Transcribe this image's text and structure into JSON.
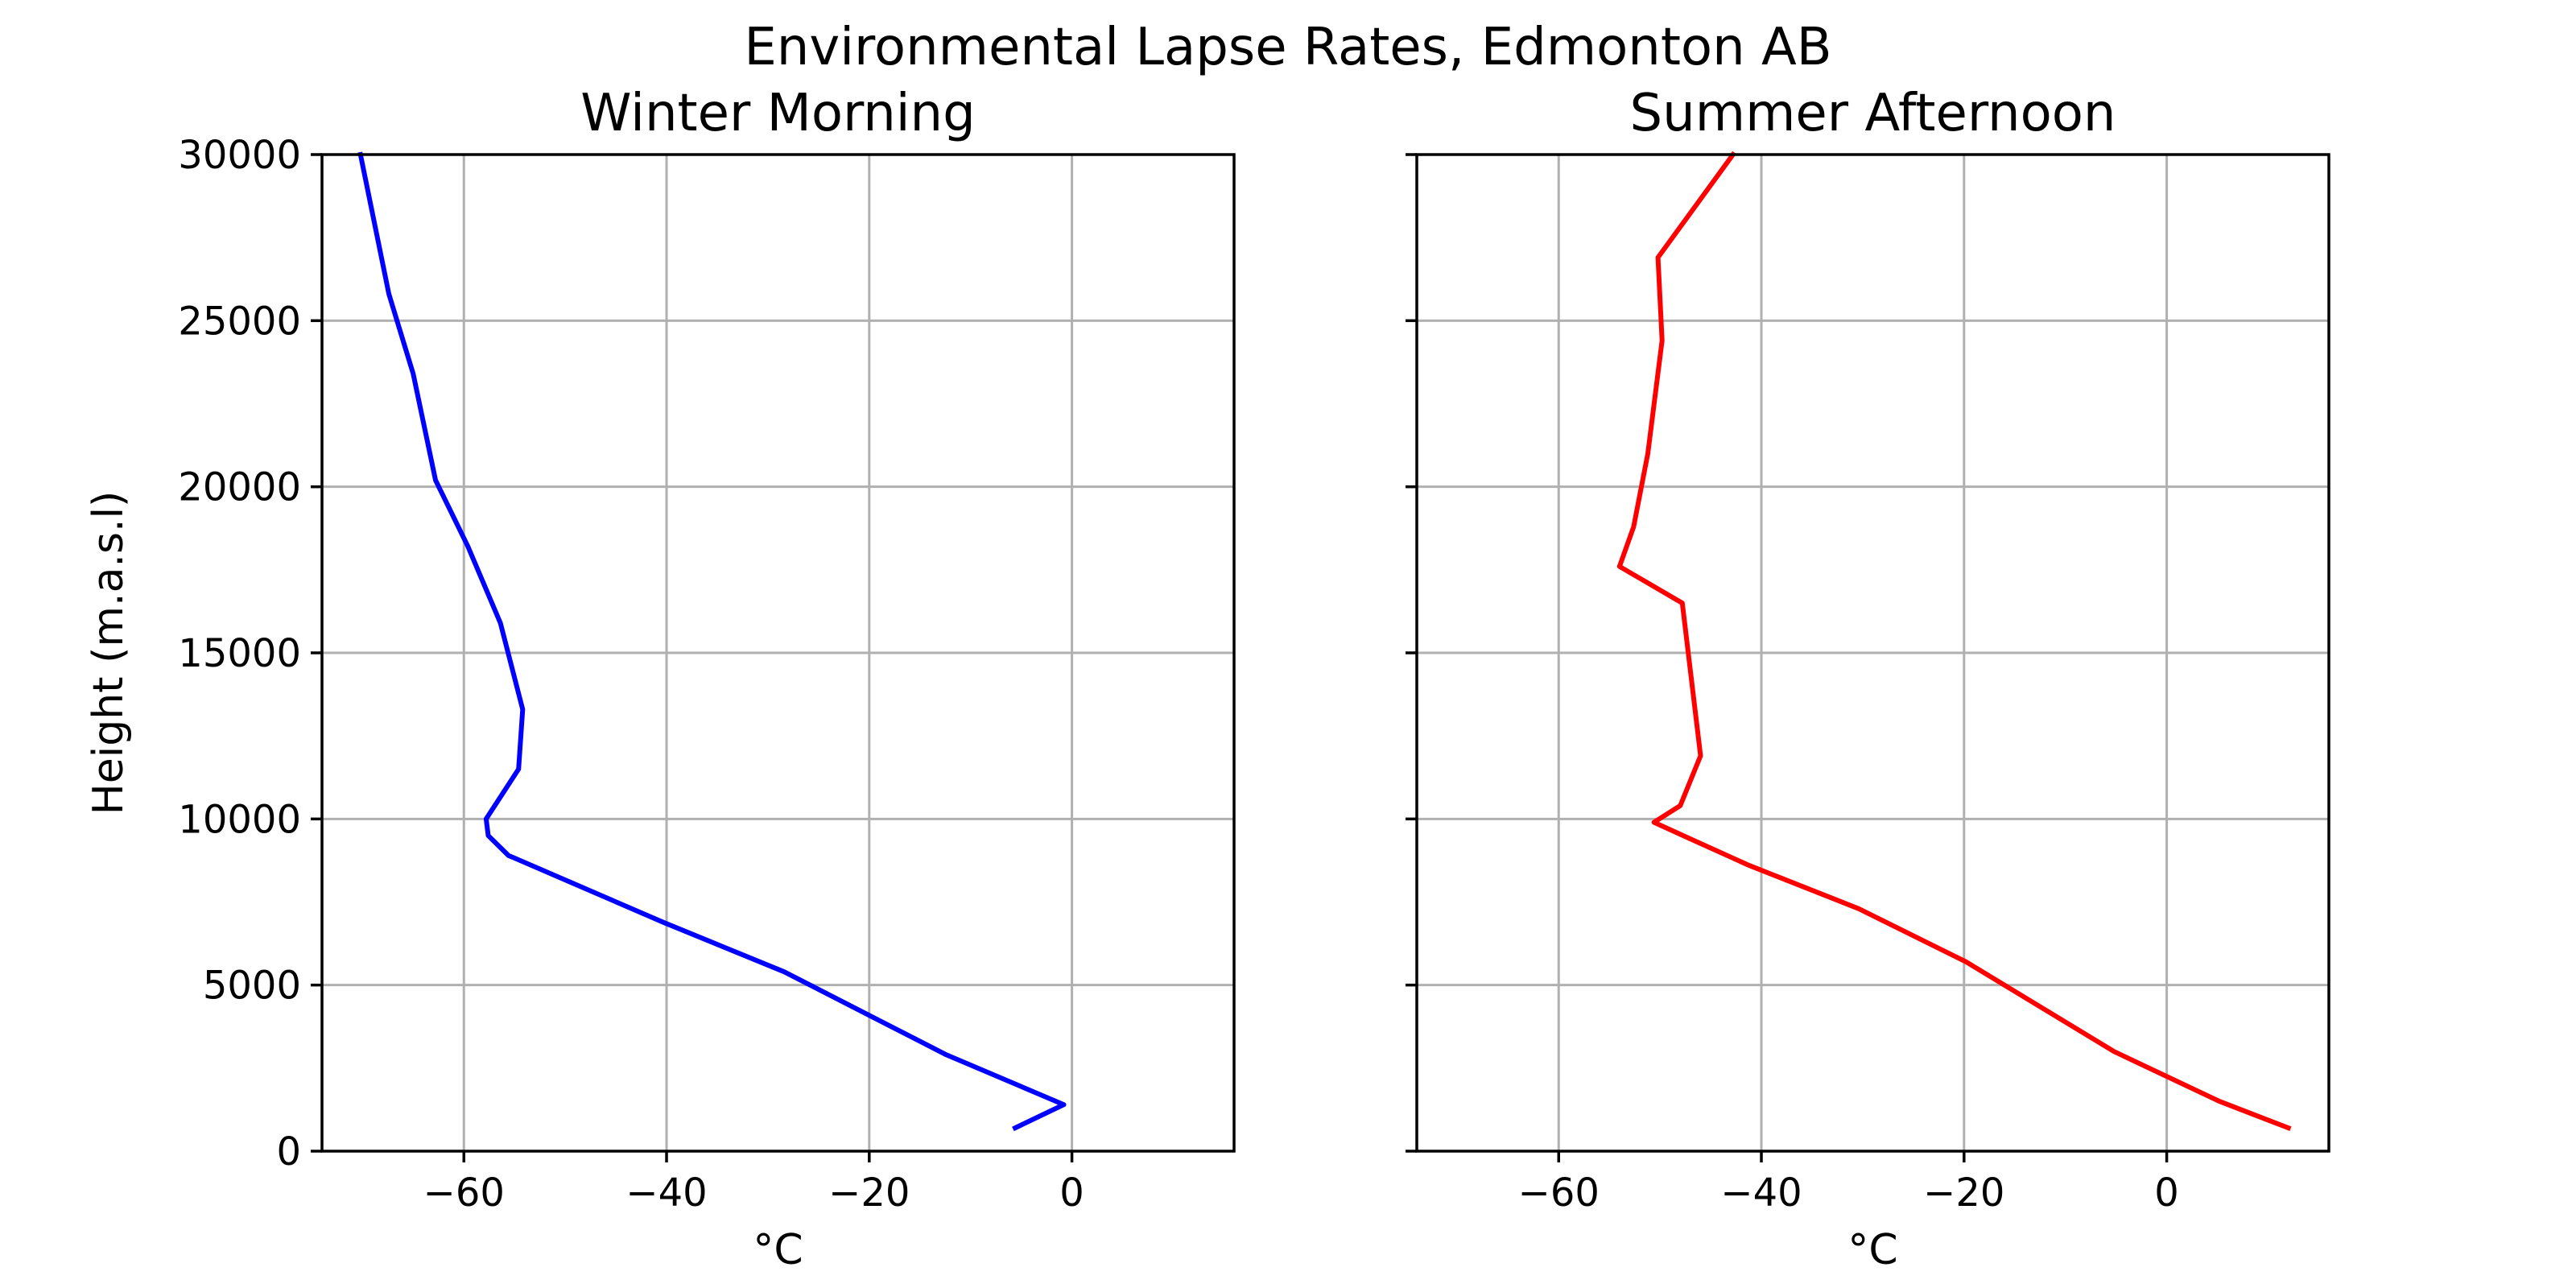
{
  "figure": {
    "suptitle": "Environmental Lapse Rates, Edmonton AB"
  },
  "chart_data": [
    {
      "type": "line",
      "title": "Winter Morning",
      "xlabel": "°C",
      "ylabel": "Height (m.a.s.l)",
      "xlim": [
        -74,
        16
      ],
      "ylim": [
        0,
        30000
      ],
      "xticks": [
        -60,
        -40,
        -20,
        0
      ],
      "xtick_labels": [
        "−60",
        "−40",
        "−20",
        "0"
      ],
      "yticks": [
        0,
        5000,
        10000,
        15000,
        20000,
        25000,
        30000
      ],
      "ytick_labels": [
        "0",
        "5000",
        "10000",
        "15000",
        "20000",
        "25000",
        "30000"
      ],
      "show_ytick_labels": true,
      "grid": true,
      "series": [
        {
          "color": "#0000ff",
          "x": [
            -5.6,
            -0.8,
            -12.4,
            -28.4,
            -40.4,
            -55.6,
            -57.6,
            -57.8,
            -54.6,
            -54.2,
            -56.4,
            -59.6,
            -62.8,
            -65.0,
            -67.4,
            -70.2
          ],
          "y": [
            700,
            1400,
            2900,
            5400,
            6900,
            8900,
            9500,
            10000,
            11500,
            13300,
            15900,
            18200,
            20200,
            23400,
            25800,
            30000
          ]
        }
      ]
    },
    {
      "type": "line",
      "title": "Summer Afternoon",
      "xlabel": "°C",
      "ylabel": "",
      "xlim": [
        -74,
        16
      ],
      "ylim": [
        0,
        30000
      ],
      "xticks": [
        -60,
        -40,
        -20,
        0
      ],
      "xtick_labels": [
        "−60",
        "−40",
        "−20",
        "0"
      ],
      "yticks": [
        0,
        5000,
        10000,
        15000,
        20000,
        25000,
        30000
      ],
      "ytick_labels": [
        "0",
        "5000",
        "10000",
        "15000",
        "20000",
        "25000",
        "30000"
      ],
      "show_ytick_labels": false,
      "grid": true,
      "series": [
        {
          "color": "#ff0000",
          "x": [
            12.0,
            5.2,
            -5.2,
            -19.8,
            -30.4,
            -41.2,
            -47.0,
            -50.6,
            -48.0,
            -46.0,
            -47.8,
            -54.0,
            -52.6,
            -51.2,
            -49.8,
            -50.2,
            -42.8
          ],
          "y": [
            700,
            1500,
            3000,
            5700,
            7300,
            8600,
            9400,
            9900,
            10400,
            11900,
            16500,
            17600,
            18800,
            21000,
            24400,
            26900,
            30000
          ]
        }
      ]
    }
  ]
}
